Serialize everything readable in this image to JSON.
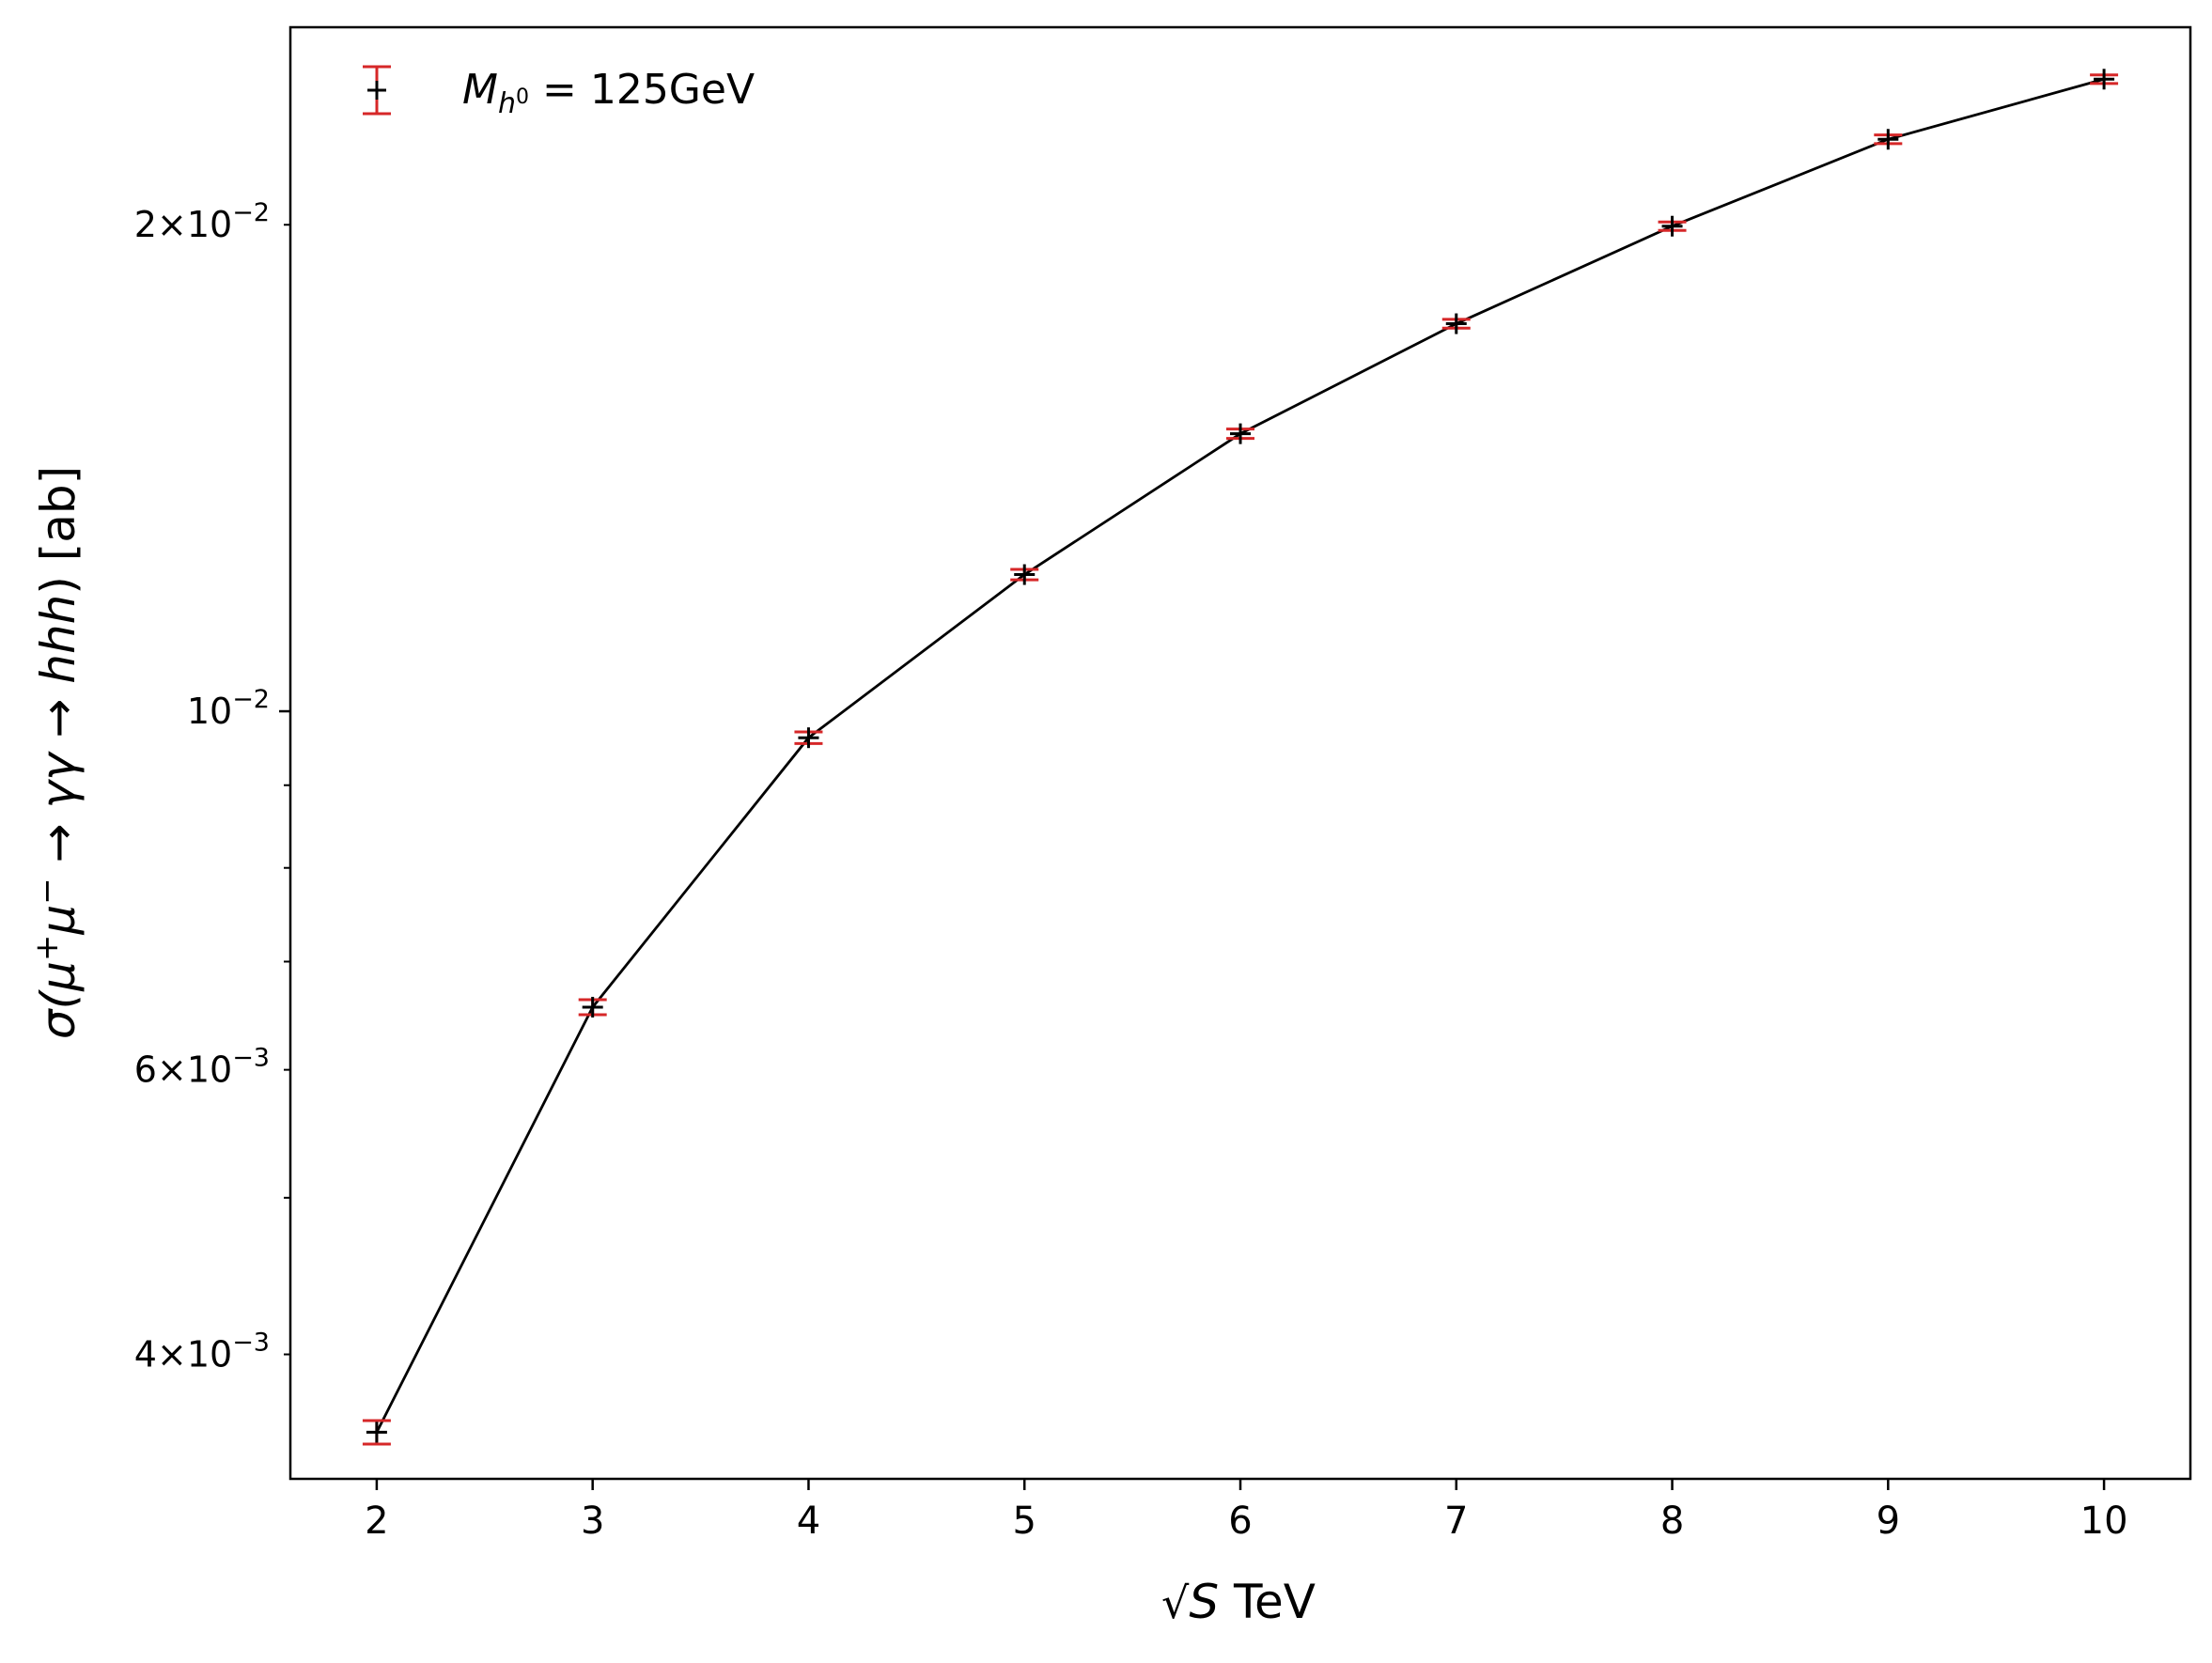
{
  "chart_data": {
    "type": "line",
    "title": "",
    "xlabel": "√S TeV",
    "ylabel": "σ(μ⁺μ⁻ → γγ → hhh) [ab]",
    "yscale": "log",
    "xlim": [
      1.6,
      10.4
    ],
    "ylim": [
      0.00335,
      0.0265
    ],
    "grid": false,
    "legend_position": "top-left",
    "x": [
      2,
      3,
      4,
      5,
      6,
      7,
      8,
      9,
      10
    ],
    "series": [
      {
        "name": "M_h0 = 125GeV",
        "values": [
          0.00358,
          0.00656,
          0.00963,
          0.01215,
          0.01485,
          0.01737,
          0.01996,
          0.02259,
          0.02461
        ],
        "errors": [
          6e-05,
          7e-05,
          8e-05,
          9e-05,
          0.0001,
          0.00011,
          0.00012,
          0.00014,
          0.00015
        ],
        "line_color": "#000000",
        "errorbar_color": "#d62728",
        "marker": "+"
      }
    ],
    "x_ticks": [
      {
        "value": 2,
        "label": "2"
      },
      {
        "value": 3,
        "label": "3"
      },
      {
        "value": 4,
        "label": "4"
      },
      {
        "value": 5,
        "label": "5"
      },
      {
        "value": 6,
        "label": "6"
      },
      {
        "value": 7,
        "label": "7"
      },
      {
        "value": 8,
        "label": "8"
      },
      {
        "value": 9,
        "label": "9"
      },
      {
        "value": 10,
        "label": "10"
      }
    ],
    "y_major_ticks": [
      {
        "value": 0.01,
        "mantissa": "",
        "base": "10",
        "exponent": "−2"
      }
    ],
    "y_labeled_minor_ticks": [
      {
        "value": 0.004,
        "mantissa": "4×",
        "base": "10",
        "exponent": "−3"
      },
      {
        "value": 0.006,
        "mantissa": "6×",
        "base": "10",
        "exponent": "−3"
      },
      {
        "value": 0.02,
        "mantissa": "2×",
        "base": "10",
        "exponent": "−2"
      }
    ],
    "y_unlabeled_minor_ticks": [
      0.005,
      0.007,
      0.008,
      0.009
    ]
  },
  "legend": {
    "label_main": "M",
    "label_sub": "h",
    "label_subsup": "0",
    "label_rest": " = 125GeV"
  },
  "axes": {
    "xlabel_radical": "√",
    "xlabel_var": "S",
    "xlabel_unit": " TeV",
    "ylabel_sigma": "σ(",
    "ylabel_mu": "μ",
    "ylabel_plus": "+",
    "ylabel_mu2": "μ",
    "ylabel_minus": "−",
    "ylabel_arrow1": " → ",
    "ylabel_gg": "γγ",
    "ylabel_arrow2": " → ",
    "ylabel_hhh": "hhh",
    "ylabel_close": ") [ab]"
  }
}
